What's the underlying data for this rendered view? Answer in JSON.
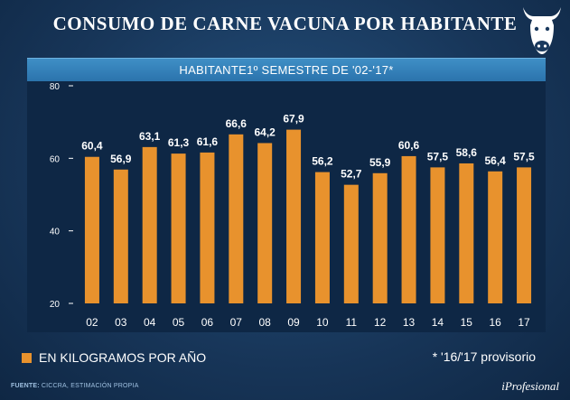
{
  "header": {
    "title": "CONSUMO DE CARNE VACUNA POR HABITANTE",
    "logo_icon": "cow-head-icon"
  },
  "chart_data": {
    "type": "bar",
    "title": "HABITANTE1º SEMESTRE DE '02-'17*",
    "categories": [
      "02",
      "03",
      "04",
      "05",
      "06",
      "07",
      "08",
      "09",
      "10",
      "11",
      "12",
      "13",
      "14",
      "15",
      "16",
      "17"
    ],
    "values": [
      60.4,
      56.9,
      63.1,
      61.3,
      61.6,
      66.6,
      64.2,
      67.9,
      56.2,
      52.7,
      55.9,
      60.6,
      57.5,
      58.6,
      56.4,
      57.5
    ],
    "value_labels": [
      "60,4",
      "56,9",
      "63,1",
      "61,3",
      "61,6",
      "66,6",
      "64,2",
      "67,9",
      "56,2",
      "52,7",
      "55,9",
      "60,6",
      "57,5",
      "58,6",
      "56,4",
      "57,5"
    ],
    "ylim": [
      20,
      80
    ],
    "yticks": [
      20,
      40,
      60,
      80
    ],
    "grid": false,
    "bar_color": "#e8922d",
    "xlabel": "",
    "ylabel": ""
  },
  "legend": {
    "label": "EN KILOGRAMOS POR AÑO"
  },
  "footnote": "* '16/'17 provisorio",
  "source": {
    "label": "FUENTE:",
    "text": "CICCRA, ESTIMACIÓN PROPIA"
  },
  "brand": "iProfesional"
}
